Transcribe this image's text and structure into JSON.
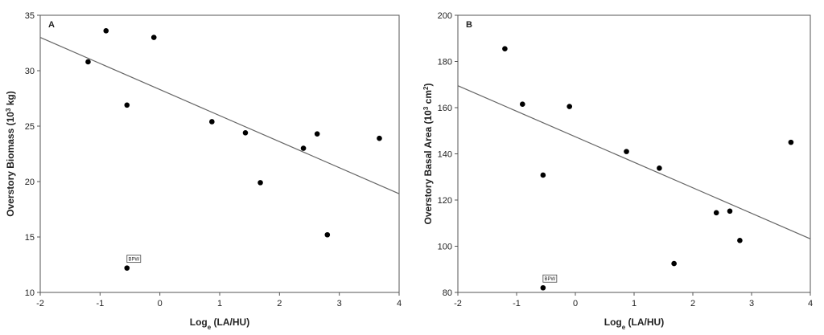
{
  "chart_data": [
    {
      "type": "scatter",
      "panel_label": "A",
      "xlabel": {
        "main": "Log",
        "sub": "e",
        "rest": " (LA/HU)"
      },
      "ylabel": {
        "pre": "Overstory Biomass (10",
        "sup": "3",
        "post": " kg)"
      },
      "xlim": [
        -2,
        4
      ],
      "ylim": [
        10,
        35
      ],
      "xticks": [
        -2,
        -1,
        0,
        1,
        2,
        3,
        4
      ],
      "yticks": [
        10,
        15,
        20,
        25,
        30,
        35
      ],
      "grid": false,
      "legend": "none",
      "points": [
        {
          "x": -1.2,
          "y": 30.8
        },
        {
          "x": -0.9,
          "y": 33.6
        },
        {
          "x": -0.55,
          "y": 26.9
        },
        {
          "x": -0.1,
          "y": 33.0
        },
        {
          "x": 0.87,
          "y": 25.4
        },
        {
          "x": 1.43,
          "y": 24.4
        },
        {
          "x": 1.68,
          "y": 19.9
        },
        {
          "x": 2.4,
          "y": 23.0
        },
        {
          "x": 2.63,
          "y": 24.3
        },
        {
          "x": 2.8,
          "y": 15.2
        },
        {
          "x": 3.67,
          "y": 23.9
        },
        {
          "x": -0.55,
          "y": 12.2,
          "label": "BPW"
        }
      ],
      "fit_line": {
        "x": [
          -2,
          4
        ],
        "y": [
          33.0,
          18.9
        ]
      },
      "colors": {
        "points": "#000000",
        "fit_line": "#666666",
        "axes": "#555555"
      }
    },
    {
      "type": "scatter",
      "panel_label": "B",
      "xlabel": {
        "main": "Log",
        "sub": "e",
        "rest": " (LA/HU)"
      },
      "ylabel": {
        "pre": "Overstory Basal Area (10",
        "sup": "3",
        "post": " cm",
        "sup2": "2",
        "post2": ")"
      },
      "xlim": [
        -2,
        4
      ],
      "ylim": [
        80,
        200
      ],
      "xticks": [
        -2,
        -1,
        0,
        1,
        2,
        3,
        4
      ],
      "yticks": [
        80,
        100,
        120,
        140,
        160,
        180,
        200
      ],
      "grid": false,
      "legend": "none",
      "points": [
        {
          "x": -1.2,
          "y": 185.5
        },
        {
          "x": -0.9,
          "y": 161.5
        },
        {
          "x": -0.55,
          "y": 130.8
        },
        {
          "x": -0.1,
          "y": 160.5
        },
        {
          "x": 0.87,
          "y": 141.0
        },
        {
          "x": 1.43,
          "y": 133.8
        },
        {
          "x": 1.68,
          "y": 92.5
        },
        {
          "x": 2.4,
          "y": 114.5
        },
        {
          "x": 2.63,
          "y": 115.2
        },
        {
          "x": 2.8,
          "y": 102.5
        },
        {
          "x": 3.67,
          "y": 145.0
        },
        {
          "x": -0.55,
          "y": 82.0,
          "label": "BPW"
        }
      ],
      "fit_line": {
        "x": [
          -2,
          4
        ],
        "y": [
          169.5,
          103.2
        ]
      },
      "colors": {
        "points": "#000000",
        "fit_line": "#666666",
        "axes": "#555555"
      }
    }
  ]
}
